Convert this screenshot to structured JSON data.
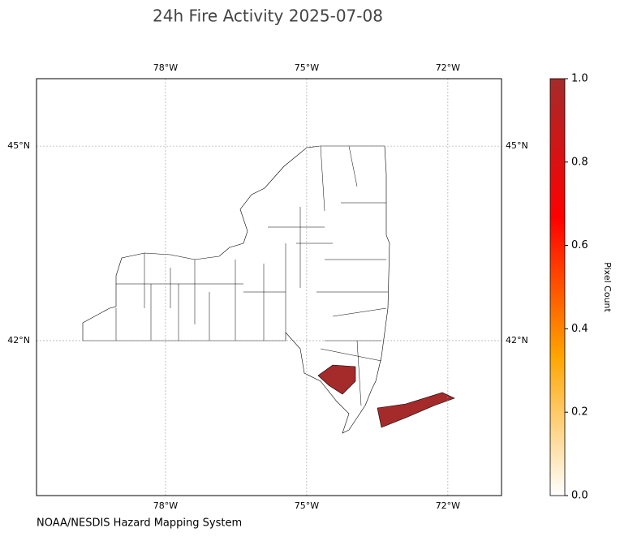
{
  "chart_data": {
    "type": "map",
    "title": "24h Fire Activity 2025-07-08",
    "source": "NOAA/NESDIS Hazard Mapping System",
    "xlim": [
      -80.74,
      -70.86
    ],
    "ylim": [
      39.61,
      46.04
    ],
    "xticks": [
      {
        "value": -78,
        "label": "78°W"
      },
      {
        "value": -75,
        "label": "75°W"
      },
      {
        "value": -72,
        "label": "72°W"
      }
    ],
    "yticks": [
      {
        "value": 42,
        "label": "42°N"
      },
      {
        "value": 45,
        "label": "45°N"
      }
    ],
    "grid": true,
    "fire_pixel_counts": [
      1,
      1
    ],
    "colorbar": {
      "label": "Pixel Count",
      "lim": [
        0,
        1
      ],
      "ticks": [
        {
          "value": 0,
          "label": "0.0"
        },
        {
          "value": 0.2,
          "label": "0.2"
        },
        {
          "value": 0.4,
          "label": "0.4"
        },
        {
          "value": 0.6,
          "label": "0.6"
        },
        {
          "value": 0.8,
          "label": "0.8"
        },
        {
          "value": 1,
          "label": "1.0"
        }
      ],
      "colors": [
        "#ffffff",
        "#ffa500",
        "#ff0000",
        "#a52a2a"
      ]
    }
  }
}
